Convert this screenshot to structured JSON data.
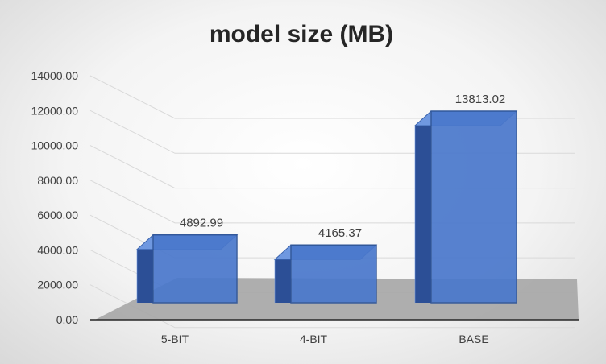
{
  "chart_data": {
    "type": "bar",
    "title": "model size (MB)",
    "xlabel": "",
    "ylabel": "",
    "categories": [
      "5-BIT",
      "4-BIT",
      "BASE"
    ],
    "values": [
      4892.99,
      4165.37,
      13813.02
    ],
    "value_labels": [
      "4892.99",
      "4165.37",
      "13813.02"
    ],
    "ylim": [
      0,
      14000
    ],
    "yticks": [
      0,
      2000,
      4000,
      6000,
      8000,
      10000,
      12000,
      14000
    ],
    "ytick_labels": [
      "0.00",
      "2000.00",
      "4000.00",
      "6000.00",
      "8000.00",
      "10000.00",
      "12000.00",
      "14000.00"
    ],
    "grid": true,
    "legend": "none",
    "style": "3d-column",
    "colors": {
      "bar_front": "#4a78cc",
      "bar_side": "#2c4f96",
      "bar_top": "#6f98e0",
      "floor": "#a6a6a6",
      "grid": "#d9d9d9",
      "axis": "#262626"
    }
  }
}
